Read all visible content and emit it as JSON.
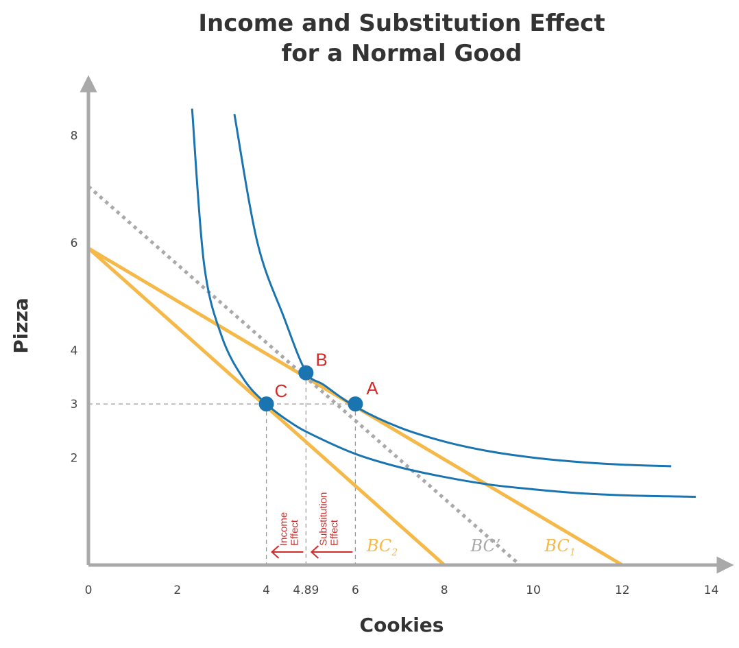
{
  "chart_data": {
    "type": "line",
    "title": "Income and Substitution Effect for a Normal Good",
    "title_lines": [
      "Income and Substitution Effect",
      "for a Normal Good"
    ],
    "xlabel": "Cookies",
    "ylabel": "Pizza",
    "xlim": [
      0,
      14.4
    ],
    "ylim": [
      0,
      8.8
    ],
    "x_ticks": [
      0,
      2,
      4,
      4.89,
      6,
      8,
      10,
      12,
      14
    ],
    "x_tick_labels": [
      "0",
      "2",
      "4",
      "4.89",
      "6",
      "8",
      "10",
      "12",
      "14"
    ],
    "y_ticks": [
      2,
      3,
      4,
      6,
      8
    ],
    "y_tick_labels": [
      "2",
      "3",
      "4",
      "6",
      "8"
    ],
    "series": [
      {
        "name": "BC₁",
        "kind": "budget",
        "color": "#f5b94a",
        "style": "solid",
        "x": [
          0,
          12
        ],
        "y": [
          5.9,
          0
        ]
      },
      {
        "name": "BC₂",
        "kind": "budget",
        "color": "#f5b94a",
        "style": "solid",
        "x": [
          0,
          8
        ],
        "y": [
          5.9,
          0
        ]
      },
      {
        "name": "BC’",
        "kind": "budget",
        "color": "#a9a9a9",
        "style": "dotted",
        "x": [
          0,
          9.7
        ],
        "y": [
          7.05,
          0
        ]
      },
      {
        "kind": "indifference",
        "color": "#1a74b0",
        "x": [
          3.28,
          3.8,
          4.4,
          4.89,
          5.3,
          6,
          7,
          8,
          9,
          10,
          11,
          12,
          13.1
        ],
        "y": [
          8.4,
          6.0,
          4.6,
          3.6,
          3.35,
          2.95,
          2.56,
          2.3,
          2.12,
          2.0,
          1.92,
          1.87,
          1.84
        ]
      },
      {
        "kind": "indifference",
        "color": "#1a74b0",
        "x": [
          2.33,
          2.6,
          3.0,
          3.5,
          4,
          4.5,
          5,
          6,
          7,
          8,
          9,
          10,
          11,
          12,
          13,
          13.65
        ],
        "y": [
          8.5,
          5.6,
          4.25,
          3.45,
          3.0,
          2.68,
          2.44,
          2.07,
          1.82,
          1.64,
          1.5,
          1.41,
          1.34,
          1.3,
          1.28,
          1.27
        ]
      }
    ],
    "points": [
      {
        "label": "A",
        "x": 6,
        "y": 3
      },
      {
        "label": "B",
        "x": 4.89,
        "y": 3.58
      },
      {
        "label": "C",
        "x": 4,
        "y": 3
      }
    ],
    "reference_lines": {
      "vertical": [
        4,
        4.89,
        6
      ],
      "horizontal": [
        3
      ]
    },
    "annotations": [
      {
        "lines": [
          "Income",
          "Effect"
        ],
        "from_x": 4.89,
        "to_x": 4
      },
      {
        "lines": [
          "Substitution",
          "Effect"
        ],
        "from_x": 6,
        "to_x": 4.89
      }
    ],
    "colors": {
      "budget": "#f5b94a",
      "budget_compensated": "#a9a9a9",
      "indifference": "#1a74b0",
      "point": "#1a74b0",
      "annotation": "#d42a2a",
      "axis": "#a9a9a9"
    }
  }
}
